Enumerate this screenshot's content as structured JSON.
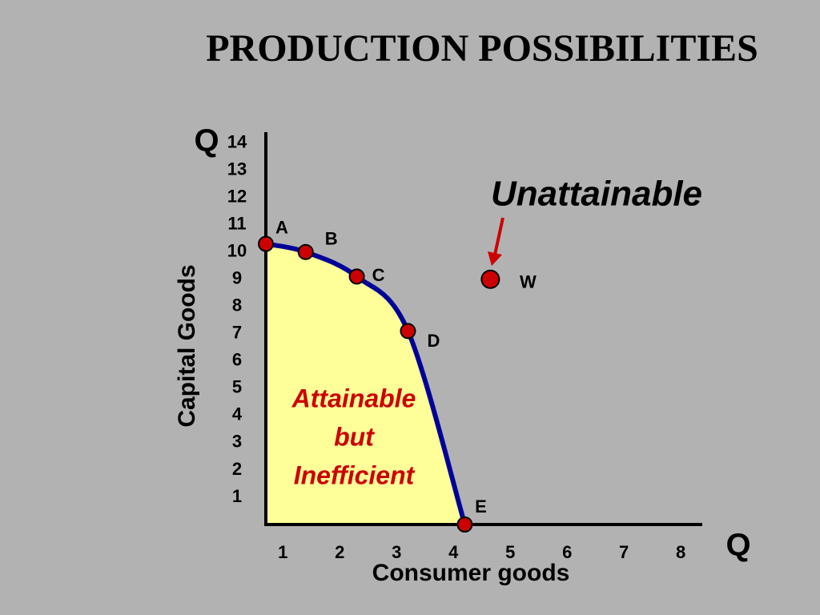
{
  "chart_data": {
    "type": "line",
    "title": "PRODUCTION POSSIBILITIES",
    "ylabel": "Capital Goods",
    "xlabel": "Consumer goods",
    "y_axis_letter": "Q",
    "x_axis_letter": "Q",
    "xlim": [
      0.7,
      8.35
    ],
    "ylim": [
      0,
      14.4
    ],
    "xticks": [
      1,
      2,
      3,
      4,
      5,
      6,
      7,
      8
    ],
    "yticks": [
      1,
      2,
      3,
      4,
      5,
      6,
      7,
      8,
      9,
      10,
      11,
      12,
      13,
      14
    ],
    "curve": {
      "color": "#000099",
      "fill": "#ffff99",
      "marker_color": "#cc0000",
      "x": [
        0.7,
        1.4,
        2.3,
        3.2,
        4.2
      ],
      "values": [
        10.3,
        10,
        9.1,
        7.1,
        0
      ],
      "point_labels": [
        "A",
        "B",
        "C",
        "D",
        "E"
      ]
    },
    "point": {
      "label": "W",
      "x": 4.65,
      "y": 9,
      "color": "#cc0000"
    },
    "annotations": {
      "unattainable": "Unattainable",
      "attainable": [
        "Attainable",
        "but",
        "Inefficient"
      ]
    }
  }
}
